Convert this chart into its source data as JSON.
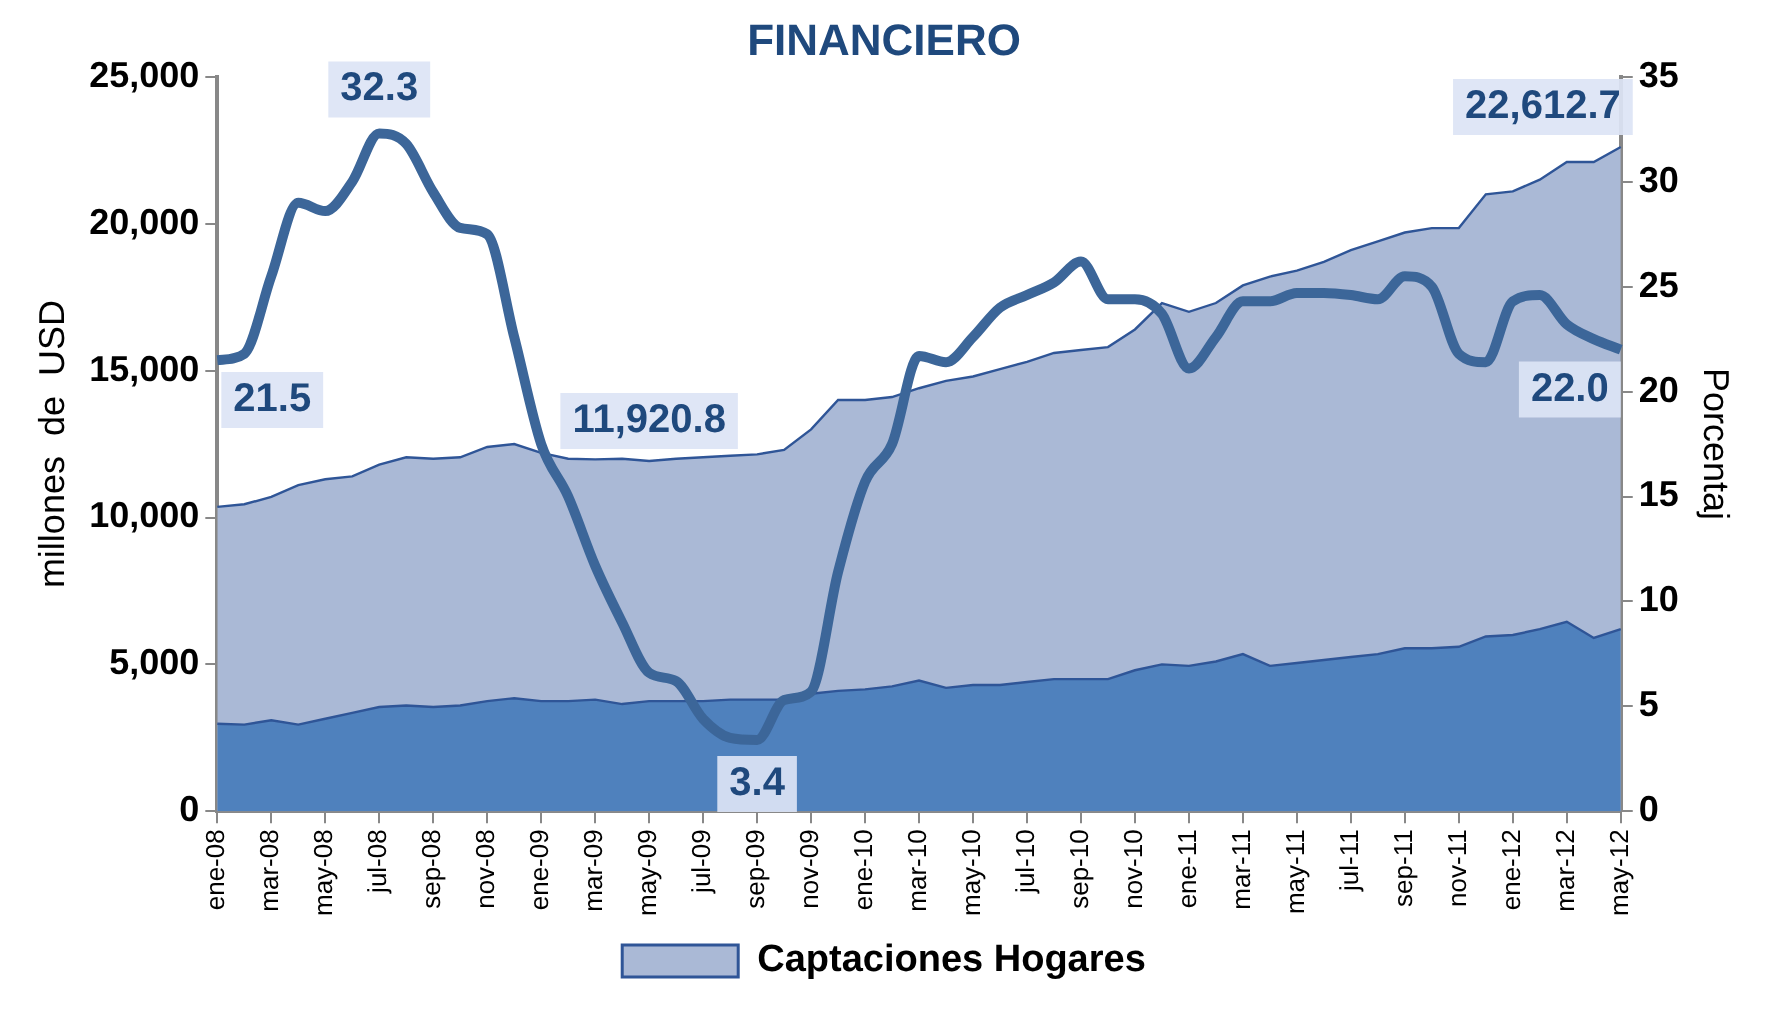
{
  "chart_data": {
    "type": "area",
    "title": "FINANCIERO",
    "ylabel": "millones  de  USD",
    "y2label": "Porcentaj",
    "categories": [
      "ene-08",
      null,
      "mar-08",
      null,
      "may-08",
      null,
      "jul-08",
      null,
      "sep-08",
      null,
      "nov-08",
      null,
      "ene-09",
      null,
      "mar-09",
      null,
      "may-09",
      null,
      "jul-09",
      null,
      "sep-09",
      null,
      "nov-09",
      null,
      "ene-10",
      null,
      "mar-10",
      null,
      "may-10",
      null,
      "jul-10",
      null,
      "sep-10",
      null,
      "nov-10",
      null,
      "ene-11",
      null,
      "mar-11",
      null,
      "may-11",
      null,
      "jul-11",
      null,
      "sep-11",
      null,
      "nov-11",
      null,
      "ene-12",
      null,
      "mar-12",
      null,
      "may-12"
    ],
    "series": [
      {
        "name": "Captaciones Hogares",
        "color": "#aab9d6",
        "values": [
          10360,
          10450,
          10700,
          11100,
          11300,
          11400,
          11800,
          12050,
          12000,
          12050,
          12400,
          12500,
          12200,
          12000,
          11980,
          12000,
          11920.8,
          12000,
          12050,
          12100,
          12150,
          12300,
          13000,
          14000,
          14000,
          14100,
          14400,
          14650,
          14800,
          15050,
          15300,
          15600,
          15700,
          15800,
          16400,
          17300,
          17000,
          17300,
          17900,
          18200,
          18400,
          18700,
          19100,
          19400,
          19700,
          19850,
          19850,
          21000,
          21100,
          21500,
          22100,
          22100,
          22612.7
        ],
        "value_labels": [
          null,
          null,
          null,
          null,
          null,
          null,
          null,
          null,
          null,
          null,
          null,
          null,
          null,
          null,
          null,
          null,
          "11,920.8",
          null,
          null,
          null,
          null,
          null,
          null,
          null,
          null,
          null,
          null,
          null,
          null,
          null,
          null,
          null,
          null,
          null,
          null,
          null,
          null,
          null,
          null,
          null,
          null,
          null,
          null,
          null,
          null,
          null,
          null,
          null,
          null,
          null,
          null,
          null,
          "22,612.7"
        ]
      },
      {
        "color": "#4f81bd",
        "values": [
          2980,
          2950,
          3100,
          2950,
          3150,
          3350,
          3550,
          3600,
          3550,
          3600,
          3750,
          3850,
          3750,
          3750,
          3800,
          3650,
          3750,
          3750,
          3750,
          3800,
          3800,
          3800,
          4000,
          4100,
          4150,
          4250,
          4450,
          4200,
          4300,
          4300,
          4400,
          4500,
          4500,
          4500,
          4800,
          5000,
          4950,
          5100,
          5350,
          4950,
          5050,
          5150,
          5250,
          5350,
          5550,
          5550,
          5600,
          5950,
          6000,
          6200,
          6450,
          5900,
          6200
        ]
      },
      {
        "type": "line",
        "axis": "y2",
        "color": "#3c6699",
        "values": [
          21.5,
          21.8,
          25.5,
          29.0,
          28.6,
          30.0,
          32.3,
          31.8,
          29.5,
          27.8,
          27.5,
          22.6,
          17.5,
          15.0,
          11.7,
          9.0,
          6.6,
          6.2,
          4.4,
          3.5,
          3.4,
          5.3,
          5.7,
          11.4,
          15.7,
          17.5,
          21.7,
          21.4,
          22.6,
          24.0,
          24.6,
          25.2,
          26.2,
          24.4,
          24.4,
          23.7,
          21.1,
          22.6,
          24.3,
          24.3,
          24.7,
          24.7,
          24.6,
          24.4,
          25.5,
          25.0,
          21.8,
          21.4,
          24.3,
          24.6,
          23.2,
          22.5,
          22.0
        ],
        "value_labels": [
          "21.5",
          null,
          null,
          null,
          null,
          null,
          "32.3",
          null,
          null,
          null,
          null,
          null,
          null,
          null,
          null,
          null,
          null,
          null,
          null,
          null,
          "3.4",
          null,
          null,
          null,
          null,
          null,
          null,
          null,
          null,
          null,
          null,
          null,
          null,
          null,
          null,
          null,
          null,
          null,
          null,
          null,
          null,
          null,
          null,
          null,
          null,
          null,
          null,
          null,
          null,
          null,
          null,
          null,
          "22.0"
        ]
      }
    ],
    "ylim": [
      0,
      25000
    ],
    "yticks": [
      0,
      {
        "value": 5000,
        "label": "5,000"
      },
      {
        "value": 10000,
        "label": "10,000"
      },
      {
        "value": 15000,
        "label": "15,000"
      },
      {
        "value": 20000,
        "label": "20,000"
      },
      {
        "value": 25000,
        "label": "25,000"
      }
    ],
    "y2lim": [
      0,
      35
    ],
    "y2ticks": [
      0,
      5,
      10,
      15,
      20,
      25,
      30,
      35
    ],
    "grid": false,
    "legend": "bottom",
    "marker": "none",
    "line_style": "solid"
  }
}
